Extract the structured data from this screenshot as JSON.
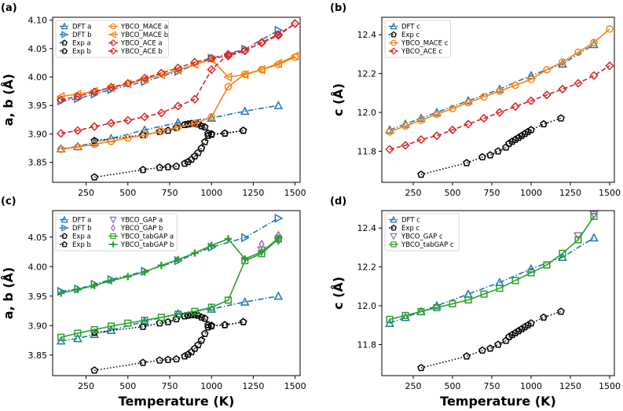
{
  "colors": {
    "blue": "#1f77b4",
    "orange": "#ff7f0e",
    "red": "#d62728",
    "green": "#2ca02c",
    "purple": "#9467bd",
    "black": "#000000"
  },
  "chart_data": [
    {
      "type": "line",
      "panel_label": "(a)",
      "xlabel": "",
      "ylabel": "a, b (Å)",
      "xlim": [
        50,
        1530
      ],
      "ylim": [
        3.815,
        4.105
      ],
      "xticks": [
        250,
        500,
        750,
        1000,
        1250,
        1500
      ],
      "yticks": [
        3.85,
        3.9,
        3.95,
        4.0,
        4.05,
        4.1
      ],
      "ytick_labels": [
        "3.85",
        "3.90",
        "3.95",
        "4.00",
        "4.05",
        "4.10"
      ],
      "legend_ncol": 2,
      "series": [
        {
          "name": "DFT a",
          "color": "#1f77b4",
          "marker": "tri-up",
          "style": "dashdot",
          "x": [
            100,
            200,
            300,
            400,
            600,
            800,
            1000,
            1200,
            1400
          ],
          "y": [
            3.874,
            3.878,
            3.885,
            3.892,
            3.907,
            3.92,
            3.928,
            3.94,
            3.95
          ]
        },
        {
          "name": "DFT b",
          "color": "#1f77b4",
          "marker": "tri-right",
          "style": "dashdot",
          "x": [
            100,
            200,
            300,
            400,
            600,
            800,
            1000,
            1200,
            1400
          ],
          "y": [
            3.958,
            3.962,
            3.97,
            3.978,
            3.992,
            4.01,
            4.033,
            4.049,
            4.082
          ]
        },
        {
          "name": "Exp a",
          "color": "#000000",
          "marker": "pentagon",
          "style": "dotted",
          "x": [
            300,
            590,
            690,
            740,
            790,
            840,
            860,
            880,
            900,
            920,
            940,
            960,
            980,
            1000,
            1080,
            1190
          ],
          "y": [
            3.824,
            3.837,
            3.841,
            3.842,
            3.843,
            3.848,
            3.851,
            3.855,
            3.861,
            3.867,
            3.875,
            3.886,
            3.897,
            3.9,
            3.901,
            3.906
          ]
        },
        {
          "name": "Exp b",
          "color": "#000000",
          "marker": "pentagon",
          "style": "dotted",
          "x": [
            300,
            590,
            690,
            740,
            790,
            840,
            860,
            880,
            900,
            920,
            940,
            960,
            980,
            1000,
            1080,
            1190
          ],
          "y": [
            3.888,
            3.898,
            3.904,
            3.906,
            3.911,
            3.916,
            3.917,
            3.918,
            3.918,
            3.917,
            3.914,
            3.912,
            3.901,
            3.899,
            3.901,
            3.906
          ]
        },
        {
          "name": "YBCO_MACE a",
          "color": "#ff7f0e",
          "marker": "circle",
          "style": "solid",
          "x": [
            100,
            200,
            300,
            400,
            500,
            600,
            700,
            800,
            900,
            1000,
            1100,
            1200,
            1300,
            1400,
            1500
          ],
          "y": [
            3.873,
            3.877,
            3.882,
            3.887,
            3.893,
            3.898,
            3.905,
            3.912,
            3.918,
            3.93,
            3.983,
            4.005,
            4.013,
            4.022,
            4.035
          ]
        },
        {
          "name": "YBCO_MACE b",
          "color": "#ff7f0e",
          "marker": "tri-left",
          "style": "solid",
          "x": [
            100,
            200,
            300,
            400,
            500,
            600,
            700,
            800,
            900,
            1000,
            1100,
            1200,
            1300,
            1400,
            1500
          ],
          "y": [
            3.966,
            3.97,
            3.975,
            3.981,
            3.988,
            3.996,
            4.004,
            4.012,
            4.022,
            4.031,
            4.0,
            4.004,
            4.013,
            4.024,
            4.037
          ]
        },
        {
          "name": "YBCO_ACE a",
          "color": "#d62728",
          "marker": "diamond",
          "style": "dashed",
          "x": [
            100,
            200,
            300,
            400,
            500,
            600,
            700,
            800,
            900,
            1000,
            1100,
            1200,
            1300,
            1400,
            1500
          ],
          "y": [
            3.901,
            3.906,
            3.913,
            3.919,
            3.924,
            3.93,
            3.937,
            3.949,
            3.961,
            4.013,
            4.04,
            4.047,
            4.06,
            4.073,
            4.094
          ]
        },
        {
          "name": "YBCO_ACE b",
          "color": "#d62728",
          "marker": "diamond",
          "style": "dashed",
          "x": [
            100,
            200,
            300,
            400,
            500,
            600,
            700,
            800,
            900,
            1000,
            1100,
            1200,
            1300,
            1400,
            1500
          ],
          "y": [
            3.96,
            3.966,
            3.974,
            3.982,
            3.989,
            3.998,
            4.007,
            4.016,
            4.026,
            4.033,
            4.037,
            4.046,
            4.061,
            4.075,
            4.094
          ]
        }
      ]
    },
    {
      "type": "line",
      "panel_label": "(b)",
      "xlabel": "",
      "ylabel": "c (Å)",
      "xlim": [
        50,
        1530
      ],
      "ylim": [
        11.64,
        12.49
      ],
      "xticks": [
        250,
        500,
        750,
        1000,
        1250,
        1500
      ],
      "yticks": [
        11.8,
        12.0,
        12.2,
        12.4
      ],
      "ytick_labels": [
        "11.8",
        "12.0",
        "12.2",
        "12.4"
      ],
      "legend_ncol": 1,
      "series": [
        {
          "name": "DFT c",
          "color": "#1f77b4",
          "marker": "tri-up",
          "style": "dashdot",
          "x": [
            100,
            200,
            300,
            400,
            600,
            800,
            1000,
            1200,
            1400
          ],
          "y": [
            11.91,
            11.94,
            11.97,
            12.0,
            12.06,
            12.12,
            12.19,
            12.25,
            12.35
          ]
        },
        {
          "name": "Exp c",
          "color": "#000000",
          "marker": "pentagon",
          "style": "dotted",
          "x": [
            300,
            590,
            690,
            740,
            790,
            840,
            860,
            880,
            900,
            920,
            940,
            960,
            980,
            1000,
            1080,
            1190
          ],
          "y": [
            11.68,
            11.74,
            11.77,
            11.78,
            11.8,
            11.82,
            11.84,
            11.85,
            11.86,
            11.87,
            11.88,
            11.89,
            11.9,
            11.91,
            11.94,
            11.97
          ]
        },
        {
          "name": "YBCO_MACE c",
          "color": "#ff7f0e",
          "marker": "circle",
          "style": "solid",
          "x": [
            100,
            200,
            300,
            400,
            500,
            600,
            700,
            800,
            900,
            1000,
            1100,
            1200,
            1300,
            1400,
            1500
          ],
          "y": [
            11.9,
            11.93,
            11.96,
            11.99,
            12.02,
            12.05,
            12.08,
            12.11,
            12.14,
            12.17,
            12.22,
            12.26,
            12.31,
            12.36,
            12.43
          ]
        },
        {
          "name": "YBCO_ACE c",
          "color": "#d62728",
          "marker": "diamond",
          "style": "dashed",
          "x": [
            100,
            200,
            300,
            400,
            500,
            600,
            700,
            800,
            900,
            1000,
            1100,
            1200,
            1300,
            1400,
            1500
          ],
          "y": [
            11.81,
            11.83,
            11.86,
            11.88,
            11.91,
            11.94,
            11.97,
            12.0,
            12.03,
            12.06,
            12.09,
            12.12,
            12.15,
            12.19,
            12.24
          ]
        }
      ]
    },
    {
      "type": "line",
      "panel_label": "(c)",
      "xlabel": "Temperature (K)",
      "ylabel": "a, b (Å)",
      "xlim": [
        50,
        1530
      ],
      "ylim": [
        3.815,
        4.095
      ],
      "xticks": [
        250,
        500,
        750,
        1000,
        1250,
        1500
      ],
      "yticks": [
        3.85,
        3.9,
        3.95,
        4.0,
        4.05
      ],
      "ytick_labels": [
        "3.85",
        "3.90",
        "3.95",
        "4.00",
        "4.05"
      ],
      "legend_ncol": 2,
      "series": [
        {
          "name": "DFT a",
          "color": "#1f77b4",
          "marker": "tri-up",
          "style": "dashdot",
          "x": [
            100,
            200,
            300,
            400,
            600,
            800,
            1000,
            1200,
            1400
          ],
          "y": [
            3.874,
            3.878,
            3.885,
            3.892,
            3.907,
            3.92,
            3.928,
            3.94,
            3.95
          ]
        },
        {
          "name": "DFT b",
          "color": "#1f77b4",
          "marker": "tri-right",
          "style": "dashdot",
          "x": [
            100,
            200,
            300,
            400,
            600,
            800,
            1000,
            1200,
            1400
          ],
          "y": [
            3.958,
            3.962,
            3.97,
            3.978,
            3.992,
            4.01,
            4.033,
            4.049,
            4.082
          ]
        },
        {
          "name": "Exp a",
          "color": "#000000",
          "marker": "pentagon",
          "style": "dotted",
          "x": [
            300,
            590,
            690,
            740,
            790,
            840,
            860,
            880,
            900,
            920,
            940,
            960,
            980,
            1000,
            1080,
            1190
          ],
          "y": [
            3.824,
            3.837,
            3.841,
            3.842,
            3.843,
            3.848,
            3.851,
            3.855,
            3.861,
            3.867,
            3.875,
            3.886,
            3.897,
            3.9,
            3.901,
            3.906
          ]
        },
        {
          "name": "Exp b",
          "color": "#000000",
          "marker": "pentagon",
          "style": "dotted",
          "x": [
            300,
            590,
            690,
            740,
            790,
            840,
            860,
            880,
            900,
            920,
            940,
            960,
            980,
            1000,
            1080,
            1190
          ],
          "y": [
            3.888,
            3.898,
            3.904,
            3.906,
            3.911,
            3.916,
            3.917,
            3.918,
            3.918,
            3.917,
            3.914,
            3.912,
            3.901,
            3.899,
            3.901,
            3.906
          ]
        },
        {
          "name": "YBCO_GAP a",
          "color": "#9467bd",
          "marker": "tri-down",
          "style": "none",
          "x": [
            1300,
            1400
          ],
          "y": [
            4.028,
            4.044
          ]
        },
        {
          "name": "YBCO_GAP b",
          "color": "#9467bd",
          "marker": "thin-diamond",
          "style": "none",
          "x": [
            1300,
            1400
          ],
          "y": [
            4.038,
            4.053
          ]
        },
        {
          "name": "YBCO_tabGAP a",
          "color": "#2ca02c",
          "marker": "square",
          "style": "solid",
          "x": [
            100,
            200,
            300,
            400,
            500,
            600,
            700,
            800,
            900,
            1000,
            1100,
            1200,
            1300,
            1400
          ],
          "y": [
            3.88,
            3.887,
            3.893,
            3.899,
            3.904,
            3.909,
            3.914,
            3.919,
            3.924,
            3.931,
            3.943,
            4.01,
            4.022,
            4.047
          ]
        },
        {
          "name": "YBCO_tabGAP b",
          "color": "#2ca02c",
          "marker": "plus",
          "style": "solid",
          "x": [
            100,
            200,
            300,
            400,
            500,
            600,
            700,
            800,
            900,
            1000,
            1100,
            1200,
            1300,
            1400
          ],
          "y": [
            3.955,
            3.961,
            3.968,
            3.976,
            3.983,
            3.991,
            4.002,
            4.012,
            4.023,
            4.036,
            4.047,
            4.013,
            4.025,
            4.048
          ]
        }
      ]
    },
    {
      "type": "line",
      "panel_label": "(d)",
      "xlabel": "Temperature (K)",
      "ylabel": "c (Å)",
      "xlim": [
        50,
        1530
      ],
      "ylim": [
        11.64,
        12.49
      ],
      "xticks": [
        250,
        500,
        750,
        1000,
        1250,
        1500
      ],
      "yticks": [
        11.8,
        12.0,
        12.2,
        12.4
      ],
      "ytick_labels": [
        "11.8",
        "12.0",
        "12.2",
        "12.4"
      ],
      "legend_ncol": 1,
      "series": [
        {
          "name": "DFT c",
          "color": "#1f77b4",
          "marker": "tri-up",
          "style": "dashdot",
          "x": [
            100,
            200,
            300,
            400,
            600,
            800,
            1000,
            1200,
            1400
          ],
          "y": [
            11.91,
            11.94,
            11.97,
            12.0,
            12.06,
            12.12,
            12.19,
            12.25,
            12.35
          ]
        },
        {
          "name": "Exp c",
          "color": "#000000",
          "marker": "pentagon",
          "style": "dotted",
          "x": [
            300,
            590,
            690,
            740,
            790,
            840,
            860,
            880,
            900,
            920,
            940,
            960,
            980,
            1000,
            1080,
            1190
          ],
          "y": [
            11.68,
            11.74,
            11.77,
            11.78,
            11.8,
            11.82,
            11.84,
            11.85,
            11.86,
            11.87,
            11.88,
            11.89,
            11.9,
            11.91,
            11.94,
            11.97
          ]
        },
        {
          "name": "YBCO_GAP c",
          "color": "#9467bd",
          "marker": "tri-down",
          "style": "none",
          "x": [
            1300,
            1400
          ],
          "y": [
            12.36,
            12.47
          ]
        },
        {
          "name": "YBCO_tabGAP c",
          "color": "#2ca02c",
          "marker": "square",
          "style": "solid",
          "x": [
            100,
            200,
            300,
            400,
            500,
            600,
            700,
            800,
            900,
            1000,
            1100,
            1200,
            1300,
            1400
          ],
          "y": [
            11.93,
            11.95,
            11.97,
            11.99,
            12.01,
            12.03,
            12.06,
            12.09,
            12.13,
            12.17,
            12.21,
            12.27,
            12.34,
            12.46
          ]
        }
      ]
    }
  ]
}
